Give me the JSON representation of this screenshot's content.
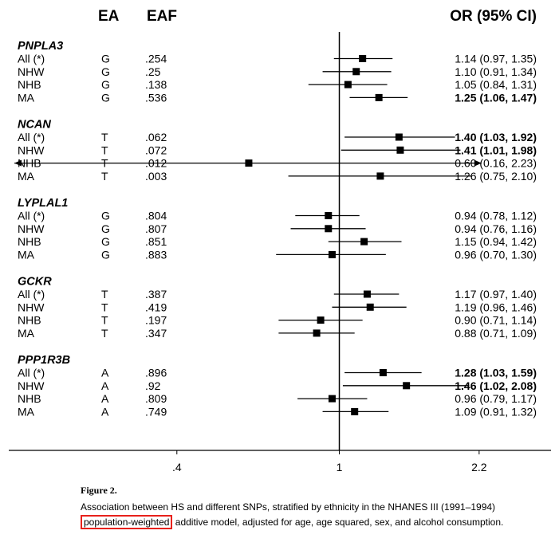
{
  "chart_data": {
    "type": "forest",
    "columns": {
      "ea": "EA",
      "eaf": "EAF",
      "or": "OR (95% CI)"
    },
    "x_scale": "log",
    "xlim": [
      0.155,
      3.3
    ],
    "reference": 1,
    "ticks": [
      {
        "value": 0.4,
        "label": ".4"
      },
      {
        "value": 1,
        "label": "1"
      },
      {
        "value": 2.2,
        "label": "2.2"
      }
    ],
    "groups": [
      {
        "name": "PNPLA3",
        "rows": [
          {
            "label": "All (*)",
            "ea": "G",
            "eaf": ".254",
            "or": 1.14,
            "lo": 0.97,
            "hi": 1.35,
            "text": "1.14 (0.97, 1.35)",
            "bold": false
          },
          {
            "label": "NHW",
            "ea": "G",
            "eaf": ".25",
            "or": 1.1,
            "lo": 0.91,
            "hi": 1.34,
            "text": "1.10 (0.91, 1.34)",
            "bold": false
          },
          {
            "label": "NHB",
            "ea": "G",
            "eaf": ".138",
            "or": 1.05,
            "lo": 0.84,
            "hi": 1.31,
            "text": "1.05 (0.84, 1.31)",
            "bold": false
          },
          {
            "label": "MA",
            "ea": "G",
            "eaf": ".536",
            "or": 1.25,
            "lo": 1.06,
            "hi": 1.47,
            "text": "1.25 (1.06, 1.47)",
            "bold": true
          }
        ]
      },
      {
        "name": "NCAN",
        "rows": [
          {
            "label": "All (*)",
            "ea": "T",
            "eaf": ".062",
            "or": 1.4,
            "lo": 1.03,
            "hi": 1.92,
            "text": "1.40 (1.03, 1.92)",
            "bold": true
          },
          {
            "label": "NHW",
            "ea": "T",
            "eaf": ".072",
            "or": 1.41,
            "lo": 1.01,
            "hi": 1.98,
            "text": "1.41 (1.01, 1.98)",
            "bold": true
          },
          {
            "label": "NHB",
            "ea": "T",
            "eaf": ".012",
            "or": 0.6,
            "lo": 0.16,
            "hi": 2.23,
            "text": "0.60 (0.16, 2.23)",
            "bold": false,
            "arrows": true
          },
          {
            "label": "MA",
            "ea": "T",
            "eaf": ".003",
            "or": 1.26,
            "lo": 0.75,
            "hi": 2.1,
            "text": "1.26 (0.75, 2.10)",
            "bold": false
          }
        ]
      },
      {
        "name": "LYPLAL1",
        "rows": [
          {
            "label": "All (*)",
            "ea": "G",
            "eaf": ".804",
            "or": 0.94,
            "lo": 0.78,
            "hi": 1.12,
            "text": "0.94 (0.78, 1.12)",
            "bold": false
          },
          {
            "label": "NHW",
            "ea": "G",
            "eaf": ".807",
            "or": 0.94,
            "lo": 0.76,
            "hi": 1.16,
            "text": "0.94 (0.76, 1.16)",
            "bold": false
          },
          {
            "label": "NHB",
            "ea": "G",
            "eaf": ".851",
            "or": 1.15,
            "lo": 0.94,
            "hi": 1.42,
            "text": "1.15 (0.94, 1.42)",
            "bold": false
          },
          {
            "label": "MA",
            "ea": "G",
            "eaf": ".883",
            "or": 0.96,
            "lo": 0.7,
            "hi": 1.3,
            "text": "0.96 (0.70, 1.30)",
            "bold": false
          }
        ]
      },
      {
        "name": "GCKR",
        "rows": [
          {
            "label": "All (*)",
            "ea": "T",
            "eaf": ".387",
            "or": 1.17,
            "lo": 0.97,
            "hi": 1.4,
            "text": "1.17 (0.97, 1.40)",
            "bold": false
          },
          {
            "label": "NHW",
            "ea": "T",
            "eaf": ".419",
            "or": 1.19,
            "lo": 0.96,
            "hi": 1.46,
            "text": "1.19 (0.96, 1.46)",
            "bold": false
          },
          {
            "label": "NHB",
            "ea": "T",
            "eaf": ".197",
            "or": 0.9,
            "lo": 0.71,
            "hi": 1.14,
            "text": "0.90 (0.71, 1.14)",
            "bold": false
          },
          {
            "label": "MA",
            "ea": "T",
            "eaf": ".347",
            "or": 0.88,
            "lo": 0.71,
            "hi": 1.09,
            "text": "0.88 (0.71, 1.09)",
            "bold": false
          }
        ]
      },
      {
        "name": "PPP1R3B",
        "rows": [
          {
            "label": "All (*)",
            "ea": "A",
            "eaf": ".896",
            "or": 1.28,
            "lo": 1.03,
            "hi": 1.59,
            "text": "1.28 (1.03, 1.59)",
            "bold": true
          },
          {
            "label": "NHW",
            "ea": "A",
            "eaf": ".92",
            "or": 1.46,
            "lo": 1.02,
            "hi": 2.08,
            "text": "1.46 (1.02, 2.08)",
            "bold": true
          },
          {
            "label": "NHB",
            "ea": "A",
            "eaf": ".809",
            "or": 0.96,
            "lo": 0.79,
            "hi": 1.17,
            "text": "0.96 (0.79, 1.17)",
            "bold": false
          },
          {
            "label": "MA",
            "ea": "A",
            "eaf": ".749",
            "or": 1.09,
            "lo": 0.91,
            "hi": 1.32,
            "text": "1.09 (0.91, 1.32)",
            "bold": false
          }
        ]
      }
    ]
  },
  "caption": {
    "figure_label": "Figure 2.",
    "text_before": "Association between HS and different SNPs, stratified by ethnicity in the NHANES III (1991–1994)",
    "highlighted": "population-weighted",
    "text_after": "additive model, adjusted for age, age squared, sex, and alcohol consumption."
  },
  "highlight_color": "#e8211b"
}
